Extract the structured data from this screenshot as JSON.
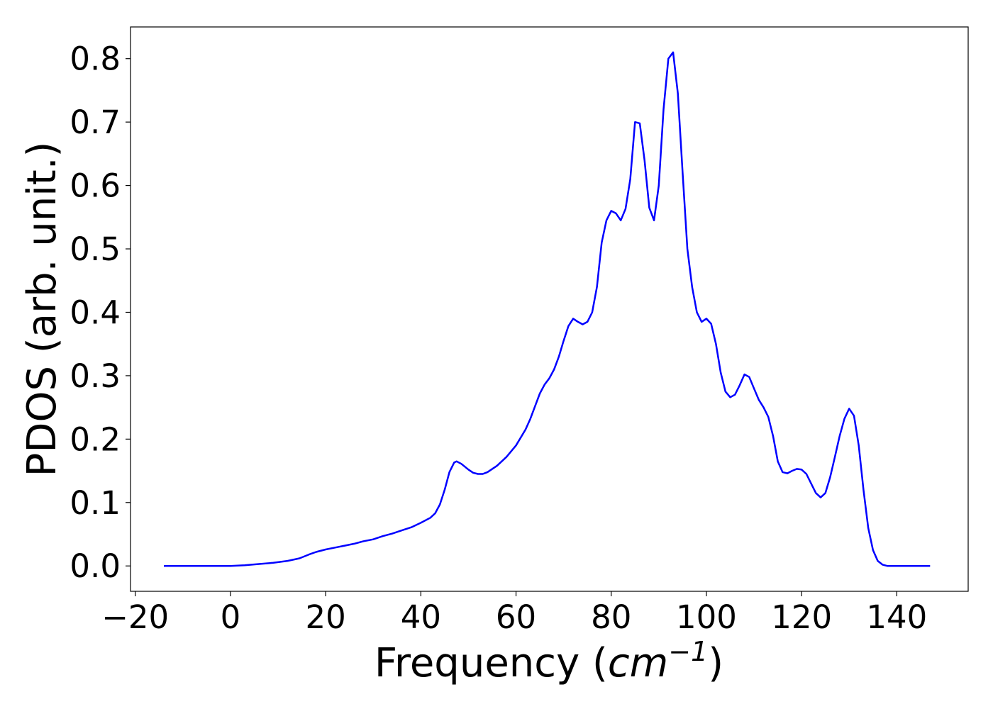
{
  "chart_data": {
    "type": "line",
    "xlabel": "Frequency",
    "xlabel_unit": "cm",
    "xlabel_unit_exponent": "−1",
    "ylabel": "PDOS (arb. unit.)",
    "xlim": [
      -21,
      155
    ],
    "ylim": [
      -0.04,
      0.85
    ],
    "x_ticks": [
      -20,
      0,
      20,
      40,
      60,
      80,
      100,
      120,
      140
    ],
    "x_tick_labels": [
      "−20",
      "0",
      "20",
      "40",
      "60",
      "80",
      "100",
      "120",
      "140"
    ],
    "y_ticks": [
      0.0,
      0.1,
      0.2,
      0.3,
      0.4,
      0.5,
      0.6,
      0.7,
      0.8
    ],
    "y_tick_labels": [
      "0.0",
      "0.1",
      "0.2",
      "0.3",
      "0.4",
      "0.5",
      "0.6",
      "0.7",
      "0.8"
    ],
    "grid": false,
    "line_color": "#0000ff",
    "series": [
      {
        "x": [
          -14,
          -10,
          -5,
          0,
          3,
          6,
          9,
          12,
          14.5,
          16.5,
          18,
          20,
          22,
          24,
          26,
          28,
          30,
          32,
          34,
          36,
          38,
          40,
          42,
          43,
          44,
          45,
          46,
          47,
          47.5,
          48.5,
          50,
          51,
          52,
          53,
          54,
          56,
          58,
          60,
          62,
          63,
          64,
          65,
          66,
          67,
          68,
          69,
          70,
          71,
          72,
          73,
          74,
          75,
          76,
          77,
          78,
          79,
          80,
          81,
          82,
          83,
          84,
          85,
          86,
          87,
          88,
          89,
          90,
          91,
          92,
          93,
          94,
          95,
          96,
          97,
          98,
          99,
          100,
          101,
          102,
          103,
          104,
          105,
          106,
          107,
          108,
          109,
          110,
          111,
          112,
          113,
          114,
          115,
          116,
          117,
          118,
          119,
          120,
          121,
          122,
          123,
          124,
          125,
          126,
          127,
          128,
          129,
          130,
          131,
          132,
          133,
          134,
          135,
          136,
          137,
          138,
          140,
          143,
          147
        ],
        "y": [
          0.0,
          0.0,
          0.0,
          0.0,
          0.001,
          0.003,
          0.005,
          0.008,
          0.012,
          0.018,
          0.022,
          0.026,
          0.029,
          0.032,
          0.035,
          0.039,
          0.042,
          0.047,
          0.051,
          0.056,
          0.061,
          0.068,
          0.076,
          0.083,
          0.097,
          0.12,
          0.148,
          0.163,
          0.165,
          0.161,
          0.152,
          0.147,
          0.145,
          0.145,
          0.148,
          0.158,
          0.172,
          0.19,
          0.215,
          0.232,
          0.252,
          0.272,
          0.286,
          0.296,
          0.31,
          0.33,
          0.355,
          0.378,
          0.39,
          0.385,
          0.381,
          0.385,
          0.4,
          0.44,
          0.51,
          0.545,
          0.56,
          0.556,
          0.545,
          0.563,
          0.61,
          0.7,
          0.698,
          0.64,
          0.565,
          0.545,
          0.6,
          0.72,
          0.8,
          0.81,
          0.745,
          0.62,
          0.5,
          0.44,
          0.4,
          0.385,
          0.39,
          0.382,
          0.35,
          0.305,
          0.275,
          0.266,
          0.27,
          0.285,
          0.302,
          0.298,
          0.28,
          0.262,
          0.25,
          0.235,
          0.205,
          0.165,
          0.148,
          0.146,
          0.15,
          0.153,
          0.152,
          0.145,
          0.13,
          0.115,
          0.108,
          0.115,
          0.14,
          0.172,
          0.205,
          0.232,
          0.248,
          0.237,
          0.19,
          0.12,
          0.06,
          0.025,
          0.008,
          0.002,
          0.0,
          0.0,
          0.0,
          0.0
        ]
      }
    ]
  }
}
